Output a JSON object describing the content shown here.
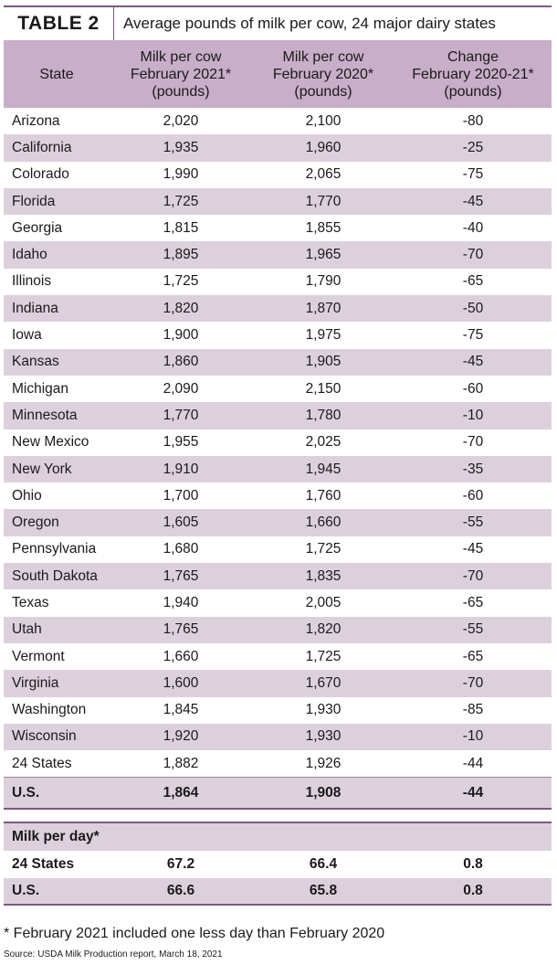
{
  "title": {
    "tag": "TABLE 2",
    "text": "Average pounds of milk per cow, 24 major dairy states"
  },
  "headers": [
    "State",
    "Milk per cow\nFebruary 2021*\n(pounds)",
    "Milk per cow\nFebruary 2020*\n(pounds)",
    "Change\nFebruary 2020-21*\n(pounds)"
  ],
  "rows": [
    [
      "Arizona",
      "2,020",
      "2,100",
      "-80"
    ],
    [
      "California",
      "1,935",
      "1,960",
      "-25"
    ],
    [
      "Colorado",
      "1,990",
      "2,065",
      "-75"
    ],
    [
      "Florida",
      "1,725",
      "1,770",
      "-45"
    ],
    [
      "Georgia",
      "1,815",
      "1,855",
      "-40"
    ],
    [
      "Idaho",
      "1,895",
      "1,965",
      "-70"
    ],
    [
      "Illinois",
      "1,725",
      "1,790",
      "-65"
    ],
    [
      "Indiana",
      "1,820",
      "1,870",
      "-50"
    ],
    [
      "Iowa",
      "1,900",
      "1,975",
      "-75"
    ],
    [
      "Kansas",
      "1,860",
      "1,905",
      "-45"
    ],
    [
      "Michigan",
      "2,090",
      "2,150",
      "-60"
    ],
    [
      "Minnesota",
      "1,770",
      "1,780",
      "-10"
    ],
    [
      "New Mexico",
      "1,955",
      "2,025",
      "-70"
    ],
    [
      "New York",
      "1,910",
      "1,945",
      "-35"
    ],
    [
      "Ohio",
      "1,700",
      "1,760",
      "-60"
    ],
    [
      "Oregon",
      "1,605",
      "1,660",
      "-55"
    ],
    [
      "Pennsylvania",
      "1,680",
      "1,725",
      "-45"
    ],
    [
      "South Dakota",
      "1,765",
      "1,835",
      "-70"
    ],
    [
      "Texas",
      "1,940",
      "2,005",
      "-65"
    ],
    [
      "Utah",
      "1,765",
      "1,820",
      "-55"
    ],
    [
      "Vermont",
      "1,660",
      "1,725",
      "-65"
    ],
    [
      "Virginia",
      "1,600",
      "1,670",
      "-70"
    ],
    [
      "Washington",
      "1,845",
      "1,930",
      "-85"
    ],
    [
      "Wisconsin",
      "1,920",
      "1,930",
      "-10"
    ],
    [
      "24 States",
      "1,882",
      "1,926",
      "-44"
    ]
  ],
  "us_row": [
    "U.S.",
    "1,864",
    "1,908",
    "-44"
  ],
  "milk_per_day": {
    "label": "Milk per day*",
    "rows": [
      [
        "24 States",
        "67.2",
        "66.4",
        "0.8"
      ],
      [
        "U.S.",
        "66.6",
        "65.8",
        "0.8"
      ]
    ]
  },
  "footnote": "* February 2021 included one less day than February 2020",
  "source": "Source: USDA Milk Production report, March 18, 2021",
  "colors": {
    "accent": "#7a5a7f",
    "header_bg": "#c8aec8",
    "stripe_bg": "#ddd0dd"
  }
}
